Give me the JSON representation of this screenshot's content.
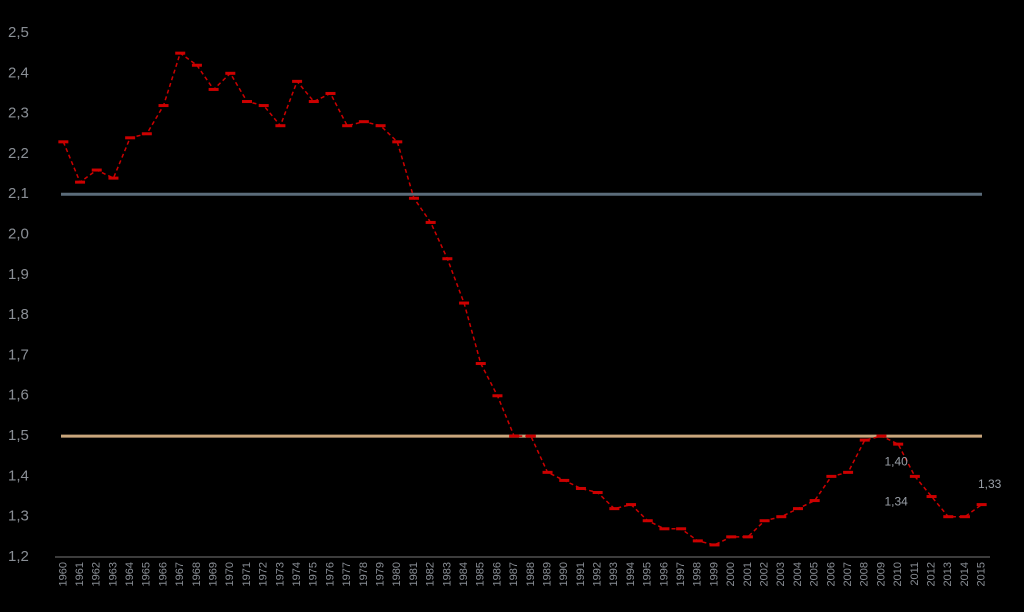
{
  "chart_data": {
    "type": "line",
    "categories": [
      "1960",
      "1961",
      "1962",
      "1963",
      "1964",
      "1965",
      "1966",
      "1967",
      "1968",
      "1969",
      "1970",
      "1971",
      "1972",
      "1973",
      "1974",
      "1975",
      "1976",
      "1977",
      "1978",
      "1979",
      "1980",
      "1981",
      "1982",
      "1983",
      "1984",
      "1985",
      "1986",
      "1987",
      "1988",
      "1989",
      "1990",
      "1991",
      "1992",
      "1993",
      "1994",
      "1995",
      "1996",
      "1997",
      "1998",
      "1999",
      "2000",
      "2001",
      "2002",
      "2003",
      "2004",
      "2005",
      "2006",
      "2007",
      "2008",
      "2009",
      "2010",
      "2011",
      "2012",
      "2013",
      "2014",
      "2015"
    ],
    "series": [
      {
        "color": "#cc0000",
        "values": [
          2.23,
          2.13,
          2.16,
          2.14,
          2.24,
          2.25,
          2.32,
          2.45,
          2.42,
          2.36,
          2.4,
          2.33,
          2.32,
          2.27,
          2.38,
          2.33,
          2.35,
          2.27,
          2.28,
          2.27,
          2.23,
          2.09,
          2.03,
          1.94,
          1.83,
          1.68,
          1.6,
          1.5,
          1.5,
          1.41,
          1.39,
          1.37,
          1.36,
          1.32,
          1.33,
          1.29,
          1.27,
          1.27,
          1.24,
          1.23,
          1.25,
          1.25,
          1.29,
          1.3,
          1.32,
          1.34,
          1.4,
          1.41,
          1.49,
          1.5,
          1.48,
          1.4,
          1.35,
          1.3,
          1.3,
          1.33
        ]
      }
    ],
    "ylim": [
      1.2,
      2.5
    ],
    "yticks": [
      {
        "value": 1.2,
        "label": "1,2"
      },
      {
        "value": 1.3,
        "label": "1,3"
      },
      {
        "value": 1.4,
        "label": "1,4"
      },
      {
        "value": 1.5,
        "label": "1,5"
      },
      {
        "value": 1.6,
        "label": "1,6"
      },
      {
        "value": 1.7,
        "label": "1,7"
      },
      {
        "value": 1.8,
        "label": "1,8"
      },
      {
        "value": 1.9,
        "label": "1,9"
      },
      {
        "value": 2.0,
        "label": "2,0"
      },
      {
        "value": 2.1,
        "label": "2,1"
      },
      {
        "value": 2.2,
        "label": "2,2"
      },
      {
        "value": 2.3,
        "label": "2,3"
      },
      {
        "value": 2.4,
        "label": "2,4"
      },
      {
        "value": 2.5,
        "label": "2,5"
      }
    ],
    "reference_lines": [
      {
        "value": 2.1,
        "color": "#5b6c7a"
      },
      {
        "value": 1.5,
        "color": "#c9a67c"
      }
    ],
    "annotations": [
      {
        "text": "1,40",
        "category": 50,
        "value": 1.4
      },
      {
        "text": "1,34",
        "category": 50,
        "value": 1.34
      },
      {
        "text": "1,33",
        "category": 55,
        "value": 1.33
      }
    ]
  }
}
